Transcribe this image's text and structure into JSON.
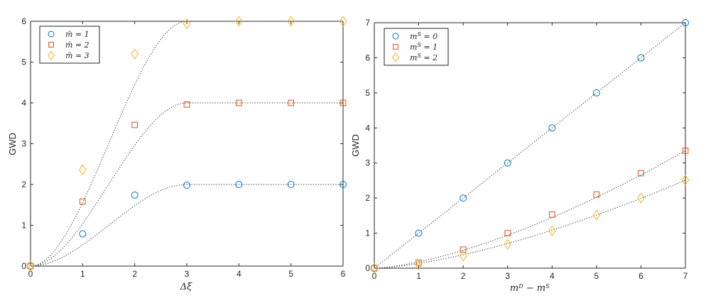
{
  "chart_data": [
    {
      "type": "scatter",
      "xlabel": "Δξ",
      "ylabel": "GWD",
      "xlim": [
        0,
        6
      ],
      "ylim": [
        0,
        6
      ],
      "xticks": [
        "0",
        "1",
        "2",
        "3",
        "4",
        "5",
        "6"
      ],
      "yticks": [
        "0",
        "1",
        "2",
        "3",
        "4",
        "5",
        "6"
      ],
      "legend_position": "top-left",
      "grid": false,
      "series": [
        {
          "name": "m̄ = 1",
          "marker": "circle",
          "color": "#0072BD",
          "x": [
            0,
            1,
            2,
            3,
            4,
            5,
            6
          ],
          "y": [
            0,
            0.79,
            1.74,
            1.98,
            2.0,
            2.0,
            2.0
          ],
          "fit_scale": 2
        },
        {
          "name": "m̄ = 2",
          "marker": "square",
          "color": "#D95319",
          "x": [
            0,
            1,
            2,
            3,
            4,
            5,
            6
          ],
          "y": [
            0,
            1.58,
            3.46,
            3.96,
            4.0,
            4.0,
            4.0
          ],
          "fit_scale": 4
        },
        {
          "name": "m̄ = 3",
          "marker": "diamond",
          "color": "#EDB120",
          "x": [
            0,
            1,
            2,
            3,
            4,
            5,
            6
          ],
          "y": [
            0,
            2.36,
            5.2,
            5.94,
            6.0,
            6.0,
            6.0
          ],
          "fit_scale": 6
        }
      ],
      "fit_lines": "dotted"
    },
    {
      "type": "scatter",
      "xlabel": "m^D − m^S",
      "ylabel": "GWD",
      "xlim": [
        0,
        7
      ],
      "ylim": [
        0,
        7
      ],
      "xticks": [
        "0",
        "1",
        "2",
        "3",
        "4",
        "5",
        "6",
        "7"
      ],
      "yticks": [
        "0",
        "1",
        "2",
        "3",
        "4",
        "5",
        "6",
        "7"
      ],
      "legend_position": "top-left",
      "grid": false,
      "series": [
        {
          "name": "m^S = 0",
          "marker": "circle",
          "color": "#0072BD",
          "x": [
            0,
            1,
            2,
            3,
            4,
            5,
            6,
            7
          ],
          "y": [
            0,
            1.0,
            2.0,
            3.0,
            4.0,
            5.0,
            6.0,
            7.0
          ],
          "fit_power": 1
        },
        {
          "name": "m^S = 1",
          "marker": "square",
          "color": "#D95319",
          "x": [
            0,
            1,
            2,
            3,
            4,
            5,
            6,
            7
          ],
          "y": [
            0,
            0.16,
            0.53,
            1.0,
            1.53,
            2.1,
            2.71,
            3.35
          ],
          "fit_power": 1.5
        },
        {
          "name": "m^S = 2",
          "marker": "diamond",
          "color": "#EDB120",
          "x": [
            0,
            1,
            2,
            3,
            4,
            5,
            6,
            7
          ],
          "y": [
            0,
            0.1,
            0.35,
            0.68,
            1.07,
            1.52,
            2.0,
            2.51
          ],
          "fit_power": 1.5
        }
      ],
      "fit_lines": "dotted"
    }
  ]
}
